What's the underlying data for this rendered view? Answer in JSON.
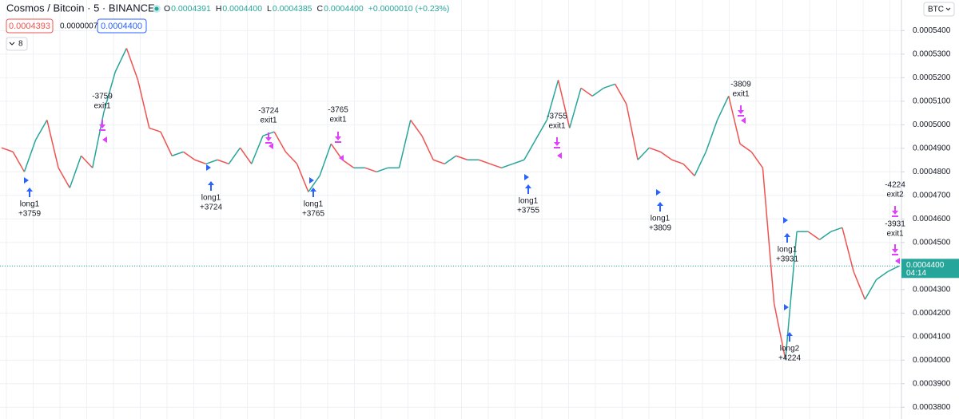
{
  "header": {
    "symbol": "Cosmos / Bitcoin · 5 · BINANCE",
    "ohlc": [
      {
        "key": "O",
        "value": "0.0004391"
      },
      {
        "key": "H",
        "value": "0.0004400"
      },
      {
        "key": "L",
        "value": "0.0004385"
      },
      {
        "key": "C",
        "value": "0.0004400"
      }
    ],
    "change": "+0.0000010 (+0.23%)",
    "sell": "0.0004393",
    "spread": "0.0000007",
    "buy": "0.0004400",
    "indicators": "8",
    "currency": "BTC"
  },
  "chart_data": {
    "type": "line",
    "values": [
      0.0004902,
      0.0004885,
      0.00048,
      0.0004936,
      0.000502,
      0.0004817,
      0.0004732,
      0.0004868,
      0.0004817,
      0.0005054,
      0.0005224,
      0.0005325,
      0.000519,
      0.0004986,
      0.000497,
      0.0004868,
      0.0004885,
      0.0004851,
      0.0004834,
      0.0004851,
      0.0004834,
      0.0004902,
      0.0004834,
      0.0004953,
      0.000497,
      0.0004885,
      0.0004834,
      0.0004715,
      0.0004783,
      0.0004919,
      0.0004851,
      0.0004817,
      0.0004817,
      0.00048,
      0.0004817,
      0.0004817,
      0.000502,
      0.0004953,
      0.0004851,
      0.0004834,
      0.0004868,
      0.0004851,
      0.0004851,
      0.0004834,
      0.0004817,
      0.0004834,
      0.0004851,
      0.0004936,
      0.000502,
      0.000519,
      0.0004986,
      0.0005156,
      0.0005122,
      0.0005156,
      0.0005173,
      0.0005088,
      0.0004851,
      0.0004902,
      0.0004885,
      0.0004851,
      0.0004834,
      0.0004783,
      0.0004885,
      0.000502,
      0.0005122,
      0.0004919,
      0.0004885,
      0.0004817,
      0.0004241,
      0.0004003,
      0.0004546,
      0.0004546,
      0.0004512,
      0.0004546,
      0.0004563,
      0.0004376,
      0.0004258,
      0.0004342,
      0.0004376,
      0.00044
    ],
    "up_color": "#26a69a",
    "down_color": "#ef5350",
    "ylim": [
      0.000375,
      0.000553
    ],
    "yticks": [
      {
        "value": 0.00054,
        "label": "0.0005400"
      },
      {
        "value": 0.00053,
        "label": "0.0005300"
      },
      {
        "value": 0.00052,
        "label": "0.0005200"
      },
      {
        "value": 0.00051,
        "label": "0.0005100"
      },
      {
        "value": 0.0005,
        "label": "0.0005000"
      },
      {
        "value": 0.00049,
        "label": "0.0004900"
      },
      {
        "value": 0.00048,
        "label": "0.0004800"
      },
      {
        "value": 0.00047,
        "label": "0.0004700"
      },
      {
        "value": 0.00046,
        "label": "0.0004600"
      },
      {
        "value": 0.00045,
        "label": "0.0004500"
      },
      {
        "value": 0.00044,
        "label": "0.0004400"
      },
      {
        "value": 0.00043,
        "label": "0.0004300"
      },
      {
        "value": 0.00042,
        "label": "0.0004200"
      },
      {
        "value": 0.00041,
        "label": "0.0004100"
      },
      {
        "value": 0.0004,
        "label": "0.0004000"
      },
      {
        "value": 0.00039,
        "label": "0.0003900"
      },
      {
        "value": 0.00038,
        "label": "0.0003800"
      }
    ],
    "grid": true,
    "last_price": 0.00044,
    "last_price_label": "0.0004400",
    "countdown": "04:14",
    "annotations": [
      [
        "long1",
        "+3759"
      ],
      [
        "-3759",
        "exit1"
      ],
      [
        "long1",
        "+3724"
      ],
      [
        "-3724",
        "exit1"
      ],
      [
        "long1",
        "+3765"
      ],
      [
        "-3765",
        "exit1"
      ],
      [
        "long1",
        "+3755"
      ],
      [
        "-3755",
        "exit1"
      ],
      [
        "long1",
        "+3809"
      ],
      [
        "-3809",
        "exit1"
      ],
      [
        "long1",
        "+3931"
      ],
      [
        "long2",
        "+4224"
      ],
      [
        "-4224",
        "exit2"
      ],
      [
        "-3931",
        "exit1"
      ]
    ]
  }
}
